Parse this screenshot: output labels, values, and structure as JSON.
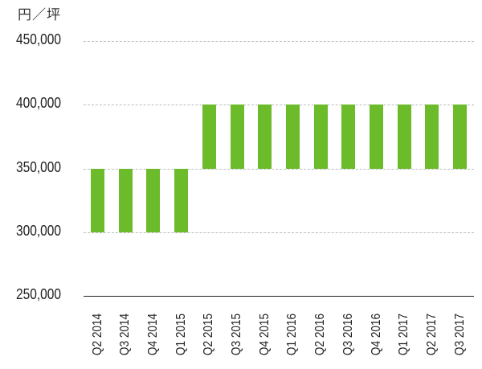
{
  "chart_data": {
    "type": "bar",
    "subtype": "floating-range",
    "title": "",
    "unit_label": "円／坪",
    "xlabel": "",
    "ylabel": "円／坪",
    "ylim": [
      250000,
      450000
    ],
    "yticks": [
      250000,
      300000,
      350000,
      400000,
      450000
    ],
    "ytick_labels": [
      "250,000",
      "300,000",
      "350,000",
      "400,000",
      "450,000"
    ],
    "grid": true,
    "legend": null,
    "bar_color": "#6bbb2a",
    "categories": [
      "Q2 2014",
      "Q3 2014",
      "Q4 2014",
      "Q1 2015",
      "Q2 2015",
      "Q3 2015",
      "Q4 2015",
      "Q1 2016",
      "Q2 2016",
      "Q3 2016",
      "Q4 2016",
      "Q1 2017",
      "Q2 2017",
      "Q3 2017"
    ],
    "series": [
      {
        "name": "low",
        "values": [
          300000,
          300000,
          300000,
          300000,
          350000,
          350000,
          350000,
          350000,
          350000,
          350000,
          350000,
          350000,
          350000,
          350000
        ]
      },
      {
        "name": "high",
        "values": [
          350000,
          350000,
          350000,
          350000,
          400000,
          400000,
          400000,
          400000,
          400000,
          400000,
          400000,
          400000,
          400000,
          400000
        ]
      }
    ]
  }
}
